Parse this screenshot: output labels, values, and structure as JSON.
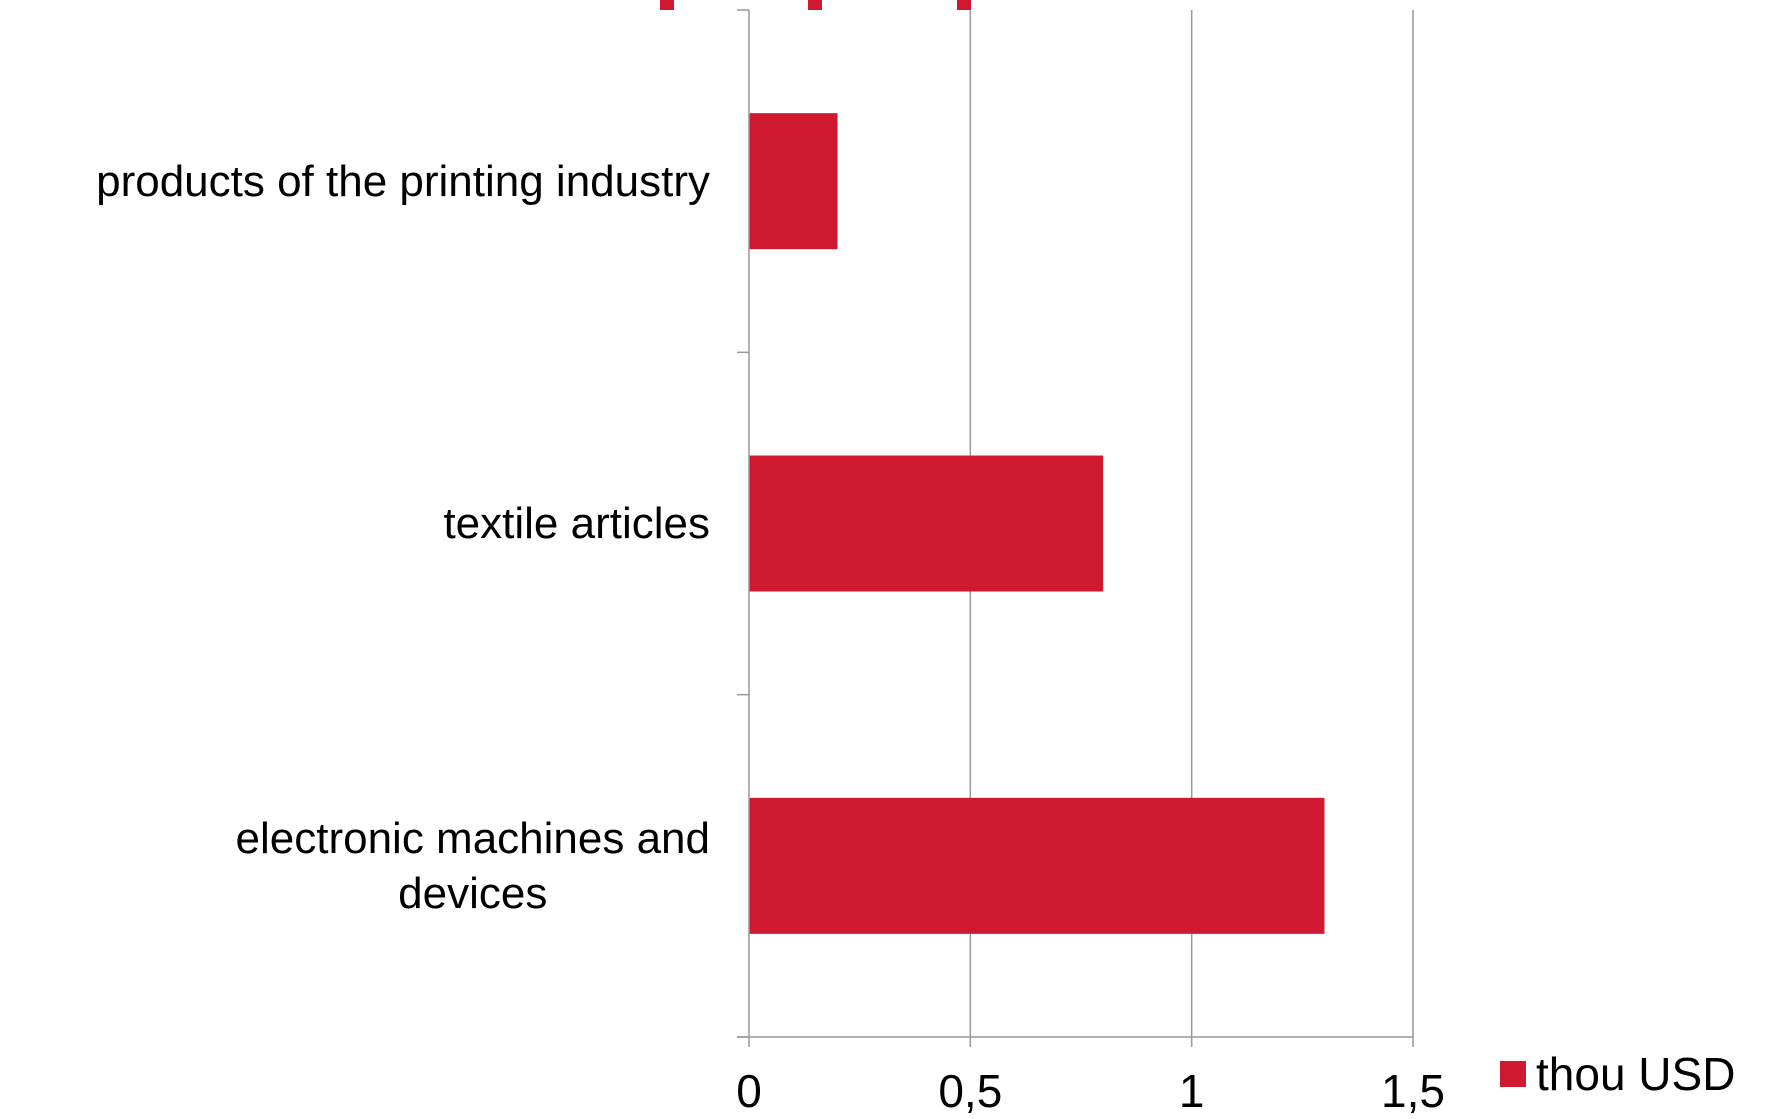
{
  "chart_data": {
    "type": "bar",
    "orientation": "horizontal",
    "categories": [
      "products of the printing industry",
      "textile articles",
      "electronic machines and devices"
    ],
    "category_lines": [
      [
        "products of the printing industry"
      ],
      [
        "textile articles"
      ],
      [
        "electronic machines and",
        "devices"
      ]
    ],
    "series": [
      {
        "name": "thou USD",
        "values": [
          0.2,
          0.8,
          1.3
        ]
      }
    ],
    "xlim": [
      0,
      1.5
    ],
    "x_ticks": [
      "0",
      "0,5",
      "1",
      "1,5"
    ],
    "x_tick_values": [
      0,
      0.5,
      1,
      1.5
    ],
    "grid": true,
    "legend_position": "bottom-right",
    "bar_color": "#D01830",
    "grid_color": "#999999"
  }
}
